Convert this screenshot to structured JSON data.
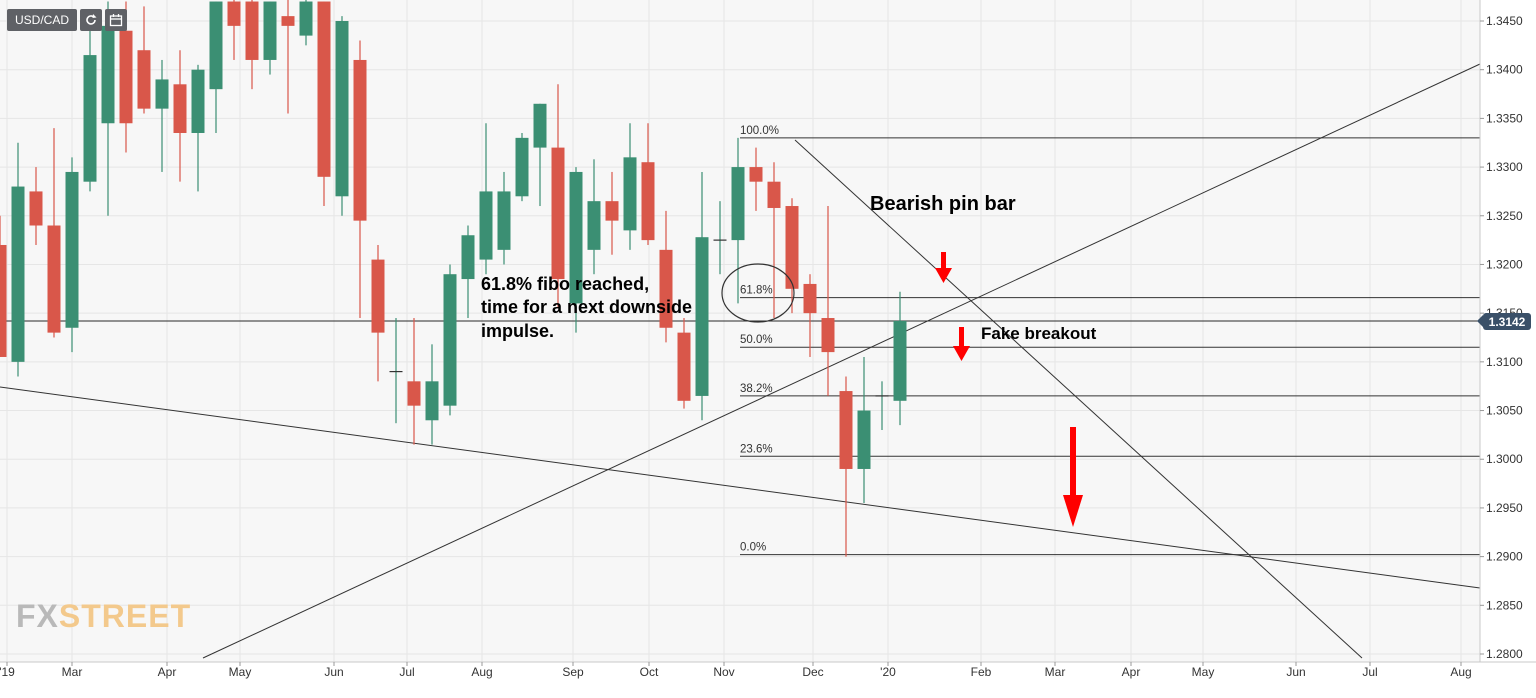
{
  "toolbar": {
    "symbol": "USD/CAD",
    "refresh_icon": "refresh-icon",
    "calendar_icon": "calendar-icon"
  },
  "last_price": "1.3142",
  "watermark": {
    "part1": "FX",
    "part2": "STREET"
  },
  "colors": {
    "up": "#3b8f73",
    "down": "#d9574a",
    "badge": "#3a5068",
    "arrow": "#ff0000",
    "plot_bg": "#f7f7f7"
  },
  "chart_data": {
    "type": "candlestick",
    "instrument": "USD/CAD",
    "timeframe": "weekly",
    "y_axis": {
      "range": [
        1.28,
        1.347
      ],
      "ticks": [
        "1.3450",
        "1.3400",
        "1.3350",
        "1.3300",
        "1.3250",
        "1.3200",
        "1.3150",
        "1.3100",
        "1.3050",
        "1.3000",
        "1.2950",
        "1.2900",
        "1.2850",
        "1.2800"
      ]
    },
    "x_axis": {
      "labels": [
        "'19",
        "Mar",
        "Apr",
        "May",
        "Jun",
        "Jul",
        "Aug",
        "Sep",
        "Oct",
        "Nov",
        "Dec",
        "'20",
        "Feb",
        "Mar",
        "Apr",
        "May",
        "Jun",
        "Jul",
        "Aug"
      ]
    },
    "grid": true,
    "candles": [
      {
        "o": 1.322,
        "h": 1.325,
        "l": 1.3105,
        "c": 1.3105
      },
      {
        "o": 1.31,
        "h": 1.3325,
        "l": 1.3085,
        "c": 1.328
      },
      {
        "o": 1.3275,
        "h": 1.33,
        "l": 1.322,
        "c": 1.324
      },
      {
        "o": 1.324,
        "h": 1.334,
        "l": 1.3125,
        "c": 1.313
      },
      {
        "o": 1.3135,
        "h": 1.331,
        "l": 1.311,
        "c": 1.3295
      },
      {
        "o": 1.3285,
        "h": 1.344,
        "l": 1.3275,
        "c": 1.3415
      },
      {
        "o": 1.3345,
        "h": 1.347,
        "l": 1.325,
        "c": 1.3445
      },
      {
        "o": 1.344,
        "h": 1.347,
        "l": 1.3315,
        "c": 1.3345
      },
      {
        "o": 1.342,
        "h": 1.3465,
        "l": 1.3355,
        "c": 1.336
      },
      {
        "o": 1.336,
        "h": 1.341,
        "l": 1.3295,
        "c": 1.339
      },
      {
        "o": 1.3385,
        "h": 1.342,
        "l": 1.3285,
        "c": 1.3335
      },
      {
        "o": 1.3335,
        "h": 1.3405,
        "l": 1.3275,
        "c": 1.34
      },
      {
        "o": 1.338,
        "h": 1.347,
        "l": 1.3335,
        "c": 1.347
      },
      {
        "o": 1.347,
        "h": 1.348,
        "l": 1.341,
        "c": 1.3445
      },
      {
        "o": 1.347,
        "h": 1.3475,
        "l": 1.338,
        "c": 1.341
      },
      {
        "o": 1.341,
        "h": 1.347,
        "l": 1.3395,
        "c": 1.347
      },
      {
        "o": 1.3455,
        "h": 1.3475,
        "l": 1.3355,
        "c": 1.3445
      },
      {
        "o": 1.3435,
        "h": 1.348,
        "l": 1.3425,
        "c": 1.347
      },
      {
        "o": 1.347,
        "h": 1.347,
        "l": 1.326,
        "c": 1.329
      },
      {
        "o": 1.327,
        "h": 1.3455,
        "l": 1.325,
        "c": 1.345
      },
      {
        "o": 1.341,
        "h": 1.343,
        "l": 1.3145,
        "c": 1.3245
      },
      {
        "o": 1.3205,
        "h": 1.322,
        "l": 1.308,
        "c": 1.313
      },
      {
        "o": 1.309,
        "h": 1.3145,
        "l": 1.3037,
        "c": 1.309
      },
      {
        "o": 1.308,
        "h": 1.3145,
        "l": 1.3015,
        "c": 1.3055
      },
      {
        "o": 1.304,
        "h": 1.3118,
        "l": 1.3015,
        "c": 1.308
      },
      {
        "o": 1.3055,
        "h": 1.32,
        "l": 1.3045,
        "c": 1.319
      },
      {
        "o": 1.3185,
        "h": 1.324,
        "l": 1.3145,
        "c": 1.323
      },
      {
        "o": 1.3205,
        "h": 1.3345,
        "l": 1.319,
        "c": 1.3275
      },
      {
        "o": 1.3215,
        "h": 1.3295,
        "l": 1.32,
        "c": 1.3275
      },
      {
        "o": 1.327,
        "h": 1.3335,
        "l": 1.3265,
        "c": 1.333
      },
      {
        "o": 1.332,
        "h": 1.3365,
        "l": 1.326,
        "c": 1.3365
      },
      {
        "o": 1.332,
        "h": 1.3385,
        "l": 1.3155,
        "c": 1.3185
      },
      {
        "o": 1.316,
        "h": 1.33,
        "l": 1.313,
        "c": 1.3295
      },
      {
        "o": 1.3215,
        "h": 1.3308,
        "l": 1.319,
        "c": 1.3265
      },
      {
        "o": 1.3265,
        "h": 1.3295,
        "l": 1.321,
        "c": 1.3245
      },
      {
        "o": 1.3235,
        "h": 1.3345,
        "l": 1.3215,
        "c": 1.331
      },
      {
        "o": 1.3305,
        "h": 1.3345,
        "l": 1.322,
        "c": 1.3225
      },
      {
        "o": 1.3215,
        "h": 1.3255,
        "l": 1.312,
        "c": 1.3135
      },
      {
        "o": 1.313,
        "h": 1.3145,
        "l": 1.3052,
        "c": 1.306
      },
      {
        "o": 1.3065,
        "h": 1.3295,
        "l": 1.304,
        "c": 1.3228
      },
      {
        "o": 1.3225,
        "h": 1.3265,
        "l": 1.319,
        "c": 1.3225
      },
      {
        "o": 1.3225,
        "h": 1.333,
        "l": 1.316,
        "c": 1.33
      },
      {
        "o": 1.33,
        "h": 1.332,
        "l": 1.3255,
        "c": 1.3285
      },
      {
        "o": 1.3285,
        "h": 1.3305,
        "l": 1.3145,
        "c": 1.3258
      },
      {
        "o": 1.326,
        "h": 1.3268,
        "l": 1.315,
        "c": 1.3175
      },
      {
        "o": 1.318,
        "h": 1.319,
        "l": 1.3105,
        "c": 1.315
      },
      {
        "o": 1.3145,
        "h": 1.326,
        "l": 1.3065,
        "c": 1.311
      },
      {
        "o": 1.307,
        "h": 1.3085,
        "l": 1.29,
        "c": 1.299
      },
      {
        "o": 1.299,
        "h": 1.3105,
        "l": 1.2955,
        "c": 1.305
      },
      {
        "o": 1.3065,
        "h": 1.308,
        "l": 1.303,
        "c": 1.3065
      },
      {
        "o": 1.306,
        "h": 1.3172,
        "l": 1.3035,
        "c": 1.3142
      }
    ],
    "fibonacci": [
      {
        "level": "100.0%",
        "price": 1.333
      },
      {
        "level": "61.8%",
        "price": 1.3166
      },
      {
        "level": "50.0%",
        "price": 1.3115
      },
      {
        "level": "38.2%",
        "price": 1.3065
      },
      {
        "level": "23.6%",
        "price": 1.3003
      },
      {
        "level": "0.0%",
        "price": 1.2902
      }
    ],
    "horizontal_price_line": 1.3142,
    "annotations": [
      {
        "id": "fibo-note",
        "lines": [
          "61.8% fibo reached,",
          "time for a next downside",
          "impulse."
        ]
      },
      {
        "id": "pin-bar",
        "text": "Bearish pin bar"
      },
      {
        "id": "fake-breakout",
        "text": "Fake breakout"
      }
    ]
  }
}
